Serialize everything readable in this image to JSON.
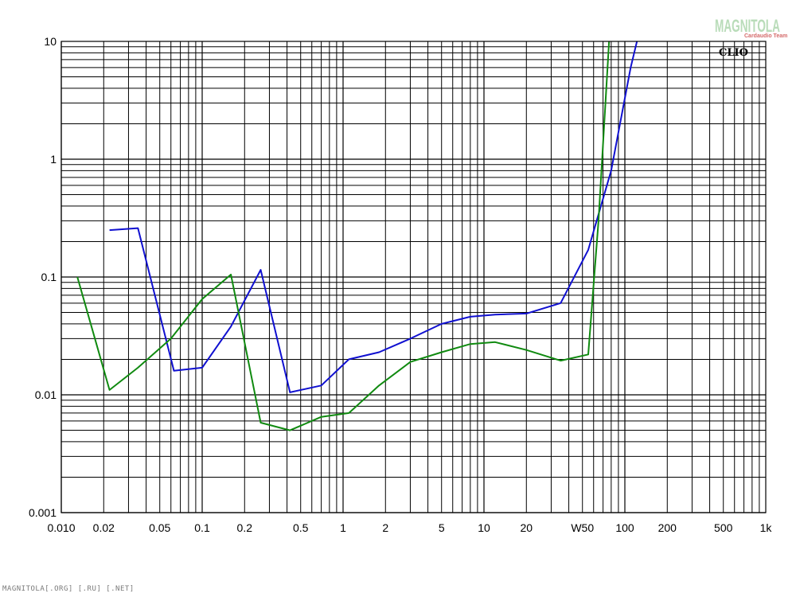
{
  "chart_data": {
    "type": "line",
    "x_scale": "log",
    "y_scale": "log",
    "xlim": [
      0.01,
      1000
    ],
    "ylim": [
      0.001,
      10
    ],
    "grid": true,
    "x_tick_labels": [
      {
        "value": 0.01,
        "label": "0.010"
      },
      {
        "value": 0.02,
        "label": "0.02"
      },
      {
        "value": 0.05,
        "label": "0.05"
      },
      {
        "value": 0.1,
        "label": "0.1"
      },
      {
        "value": 0.2,
        "label": "0.2"
      },
      {
        "value": 0.5,
        "label": "0.5"
      },
      {
        "value": 1,
        "label": "1"
      },
      {
        "value": 2,
        "label": "2"
      },
      {
        "value": 5,
        "label": "5"
      },
      {
        "value": 10,
        "label": "10"
      },
      {
        "value": 20,
        "label": "20"
      },
      {
        "value": 50,
        "label": "W50"
      },
      {
        "value": 100,
        "label": "100"
      },
      {
        "value": 200,
        "label": "200"
      },
      {
        "value": 500,
        "label": "500"
      },
      {
        "value": 1000,
        "label": "1k"
      }
    ],
    "y_tick_labels": [
      {
        "value": 10,
        "label": "10"
      },
      {
        "value": 1,
        "label": "1"
      },
      {
        "value": 0.1,
        "label": "0.1"
      },
      {
        "value": 0.01,
        "label": "0.01"
      },
      {
        "value": 0.001,
        "label": "0.001"
      }
    ],
    "annotation": "CLIO",
    "series": [
      {
        "color": "#1010d0",
        "points": [
          [
            0.022,
            0.25
          ],
          [
            0.035,
            0.26
          ],
          [
            0.063,
            0.016
          ],
          [
            0.1,
            0.017
          ],
          [
            0.16,
            0.038
          ],
          [
            0.26,
            0.115
          ],
          [
            0.42,
            0.0105
          ],
          [
            0.7,
            0.012
          ],
          [
            1.1,
            0.02
          ],
          [
            1.8,
            0.023
          ],
          [
            3,
            0.03
          ],
          [
            5,
            0.04
          ],
          [
            8,
            0.046
          ],
          [
            12,
            0.048
          ],
          [
            20,
            0.049
          ],
          [
            35,
            0.06
          ],
          [
            55,
            0.17
          ],
          [
            80,
            0.8
          ],
          [
            110,
            6
          ],
          [
            140,
            20
          ]
        ]
      },
      {
        "color": "#108a10",
        "points": [
          [
            0.013,
            0.1
          ],
          [
            0.022,
            0.011
          ],
          [
            0.035,
            0.017
          ],
          [
            0.06,
            0.03
          ],
          [
            0.1,
            0.065
          ],
          [
            0.16,
            0.105
          ],
          [
            0.26,
            0.0058
          ],
          [
            0.42,
            0.005
          ],
          [
            0.7,
            0.0065
          ],
          [
            1.1,
            0.007
          ],
          [
            1.8,
            0.012
          ],
          [
            3,
            0.019
          ],
          [
            5,
            0.023
          ],
          [
            8,
            0.027
          ],
          [
            12,
            0.028
          ],
          [
            20,
            0.024
          ],
          [
            35,
            0.0195
          ],
          [
            55,
            0.022
          ],
          [
            65,
            0.3
          ],
          [
            80,
            20
          ]
        ]
      }
    ]
  },
  "logo": {
    "wordmark": "MAGNITOLA",
    "subtitle": "Cardaudio Team"
  },
  "footer": {
    "text": "MAGNITOLA[.ORG] [.RU] [.NET]"
  }
}
